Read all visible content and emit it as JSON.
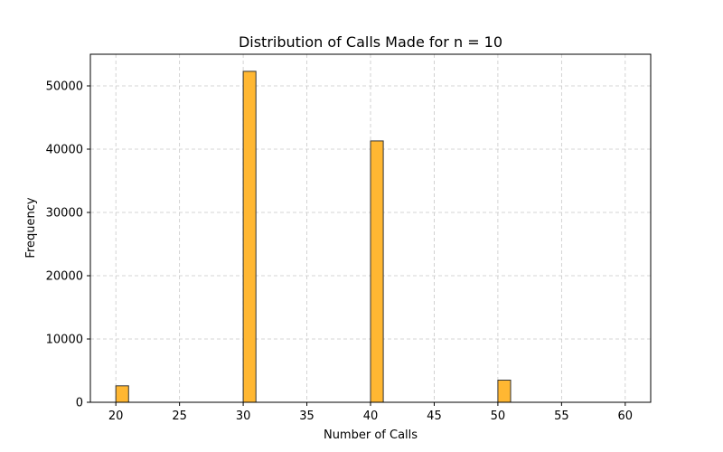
{
  "chart_data": {
    "type": "bar",
    "title": "Distribution of Calls Made for n = 10",
    "xlabel": "Number of Calls",
    "ylabel": "Frequency",
    "xlim": [
      18,
      62
    ],
    "ylim": [
      0,
      55000
    ],
    "xticks": [
      20,
      25,
      30,
      35,
      40,
      45,
      50,
      55,
      60
    ],
    "yticks": [
      0,
      10000,
      20000,
      30000,
      40000,
      50000
    ],
    "grid": true,
    "bar_color": "#FFB732",
    "edge_color": "#333333",
    "bins": [
      {
        "x_start": 20,
        "x_end": 21,
        "value": 2600
      },
      {
        "x_start": 30,
        "x_end": 31,
        "value": 52300
      },
      {
        "x_start": 40,
        "x_end": 41,
        "value": 41300
      },
      {
        "x_start": 50,
        "x_end": 51,
        "value": 3500
      }
    ]
  }
}
